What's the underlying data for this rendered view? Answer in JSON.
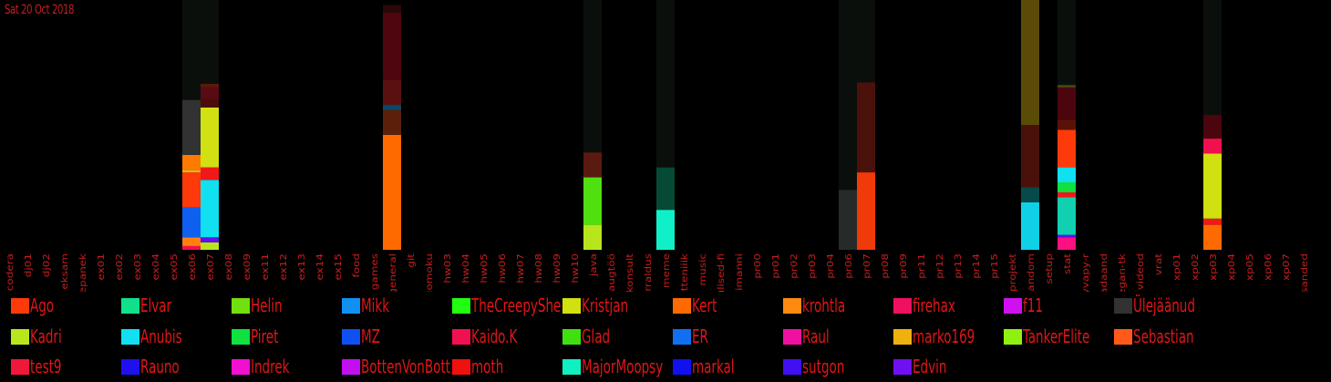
{
  "date_label": "Sat 20 Oct 2018",
  "chart_data": {
    "type": "bar",
    "stacked": true,
    "title": "",
    "xlabel": "",
    "ylabel": "",
    "grid": false,
    "legend_position": "bottom",
    "background": "#000000",
    "track_color": "#0b0f0c",
    "categories": [
      "codera",
      "dj01",
      "dj02",
      "eksam",
      "ettepanek",
      "ex01",
      "ex02",
      "ex03",
      "ex04",
      "ex05",
      "ex06",
      "ex07",
      "ex08",
      "ex09",
      "ex11",
      "ex12",
      "ex13",
      "ex14",
      "ex15",
      "food",
      "games",
      "general",
      "git",
      "gomoku",
      "hw03",
      "hw04",
      "hw05",
      "hw06",
      "hw07",
      "hw08",
      "hw09",
      "hw10",
      "java",
      "kaugtöö",
      "konsult",
      "korraldus",
      "meme",
      "mitteniiik",
      "music",
      "olulised-fi",
      "pelimanni",
      "pr00",
      "pr01",
      "pr02",
      "pr03",
      "pr04",
      "pr06",
      "pr07",
      "pr08",
      "pr09",
      "pr11",
      "pr12",
      "pr13",
      "pr14",
      "pr15",
      "projekt",
      "random",
      "setup",
      "stat",
      "syvapy-r",
      "teadaand",
      "vegan-tk",
      "videod",
      "vrat",
      "xp01",
      "xp02",
      "xp03",
      "xp04",
      "xp05",
      "xp06",
      "xp07",
      "ülesanded"
    ],
    "active_channels": [
      {
        "channel": "ex06",
        "total": 100,
        "stack": [
          {
            "color": "#f01050",
            "value": 1.5
          },
          {
            "color": "#ff8010",
            "value": 3.5
          },
          {
            "color": "#1060f0",
            "value": 12
          },
          {
            "color": "#ff3a0a",
            "value": 14
          },
          {
            "color": "#f0b010",
            "value": 1
          },
          {
            "color": "#ff7a00",
            "value": 6
          },
          {
            "color": "#323232",
            "value": 22
          },
          {
            "color": "#0b0f0c",
            "value": 40
          }
        ]
      },
      {
        "channel": "ex07",
        "total": 100,
        "stack": [
          {
            "color": "#b8e61c",
            "value": 3
          },
          {
            "color": "#6010f0",
            "value": 2
          },
          {
            "color": "#10e0f0",
            "value": 23
          },
          {
            "color": "#f01818",
            "value": 5
          },
          {
            "color": "#d0e010",
            "value": 24
          },
          {
            "color": "#4a0c0c",
            "value": 3
          },
          {
            "color": "#5a0a12",
            "value": 5
          },
          {
            "color": "#5a1a0a",
            "value": 1.5
          },
          {
            "color": "#0b0f0c",
            "value": 33.5
          }
        ]
      },
      {
        "channel": "general",
        "total": 98,
        "stack": [
          {
            "color": "#ff6a00",
            "value": 46
          },
          {
            "color": "#5a200a",
            "value": 10
          },
          {
            "color": "#084a6a",
            "value": 2
          },
          {
            "color": "#5a1010",
            "value": 10
          },
          {
            "color": "#50060e",
            "value": 27
          },
          {
            "color": "#2a0808",
            "value": 3
          }
        ]
      },
      {
        "channel": "java",
        "total": 100,
        "stack": [
          {
            "color": "#b8e61c",
            "value": 10
          },
          {
            "color": "#50e010",
            "value": 19
          },
          {
            "color": "#5a1a10",
            "value": 10
          },
          {
            "color": "#0b0f0c",
            "value": 61
          }
        ]
      },
      {
        "channel": "meme",
        "total": 100,
        "stack": [
          {
            "color": "#10f0c8",
            "value": 16
          },
          {
            "color": "#064a36",
            "value": 17
          },
          {
            "color": "#0b0f0c",
            "value": 67
          }
        ]
      },
      {
        "channel": "pr06",
        "total": 100,
        "stack": [
          {
            "color": "#262a28",
            "value": 24
          },
          {
            "color": "#0b0f0c",
            "value": 76
          }
        ]
      },
      {
        "channel": "pr07",
        "total": 100,
        "stack": [
          {
            "color": "#f03a0a",
            "value": 31
          },
          {
            "color": "#4a120a",
            "value": 36
          },
          {
            "color": "#0b0f0c",
            "value": 33
          }
        ]
      },
      {
        "channel": "random",
        "total": 100,
        "stack": [
          {
            "color": "#10d0e8",
            "value": 19
          },
          {
            "color": "#084a4a",
            "value": 6
          },
          {
            "color": "#4a100a",
            "value": 25
          },
          {
            "color": "#5a4c08",
            "value": 50
          }
        ]
      },
      {
        "channel": "stat",
        "total": 100,
        "stack": [
          {
            "color": "#ff1080",
            "value": 5
          },
          {
            "color": "#6010f0",
            "value": 1
          },
          {
            "color": "#10d0b0",
            "value": 15
          },
          {
            "color": "#f01818",
            "value": 2
          },
          {
            "color": "#10e040",
            "value": 4
          },
          {
            "color": "#10e0f0",
            "value": 6
          },
          {
            "color": "#ff3a0a",
            "value": 15
          },
          {
            "color": "#5a1208",
            "value": 4
          },
          {
            "color": "#4a060c",
            "value": 13
          },
          {
            "color": "#4a4a10",
            "value": 1
          },
          {
            "color": "#0b0f0c",
            "value": 34
          }
        ]
      },
      {
        "channel": "xp03",
        "total": 100,
        "stack": [
          {
            "color": "#ff6a00",
            "value": 10
          },
          {
            "color": "#f01818",
            "value": 2.5
          },
          {
            "color": "#d0e010",
            "value": 26
          },
          {
            "color": "#f01050",
            "value": 6
          },
          {
            "color": "#4a060c",
            "value": 9.5
          },
          {
            "color": "#0b0f0c",
            "value": 46
          }
        ]
      }
    ]
  },
  "legend": {
    "items": [
      {
        "name": "Ago",
        "color": "#ff3a0a"
      },
      {
        "name": "Elvar",
        "color": "#10e08a"
      },
      {
        "name": "Helin",
        "color": "#70e010"
      },
      {
        "name": "Mikk",
        "color": "#1090f0"
      },
      {
        "name": "TheCreepySheep",
        "color": "#20ff10"
      },
      {
        "name": "Kristjan",
        "color": "#d0e010"
      },
      {
        "name": "Kert",
        "color": "#ff6a00"
      },
      {
        "name": "krohtla",
        "color": "#ff8a10"
      },
      {
        "name": "firehax",
        "color": "#f01060"
      },
      {
        "name": "f11",
        "color": "#d010f0"
      },
      {
        "name": "Ülejäänud",
        "color": "#323232"
      },
      {
        "name": "Kadri",
        "color": "#b8e61c"
      },
      {
        "name": "Anubis",
        "color": "#10e0f0"
      },
      {
        "name": "Piret",
        "color": "#10e040"
      },
      {
        "name": "MZ",
        "color": "#1050f0"
      },
      {
        "name": "Kaido.K",
        "color": "#f01050"
      },
      {
        "name": "Glad",
        "color": "#40e010"
      },
      {
        "name": "ER",
        "color": "#1070f0"
      },
      {
        "name": "Raul",
        "color": "#f010a0"
      },
      {
        "name": "marko169",
        "color": "#f0b010"
      },
      {
        "name": "TankerElite",
        "color": "#90f010"
      },
      {
        "name": "Sebastian",
        "color": "#ff5a1a"
      },
      {
        "name": "test9",
        "color": "#f01838"
      },
      {
        "name": "Rauno",
        "color": "#2010f0"
      },
      {
        "name": "Indrek",
        "color": "#f010d0"
      },
      {
        "name": "BottenVonBotten",
        "color": "#c010f0"
      },
      {
        "name": "moth",
        "color": "#f01010"
      },
      {
        "name": "MajorMoopsy",
        "color": "#10f0c0"
      },
      {
        "name": "markal",
        "color": "#1010f0"
      },
      {
        "name": "sutgon",
        "color": "#4010f0"
      },
      {
        "name": "Edvin",
        "color": "#7010f0"
      }
    ]
  }
}
